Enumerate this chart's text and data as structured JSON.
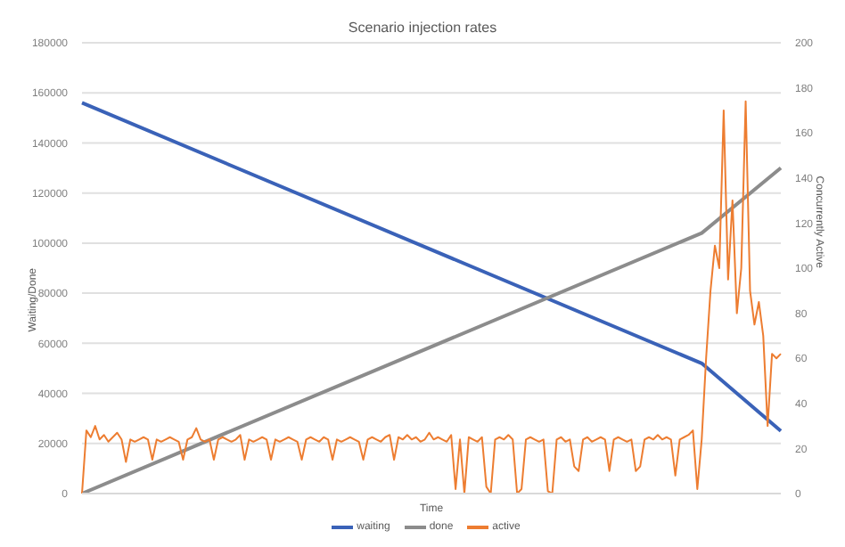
{
  "chart_data": {
    "type": "line",
    "title": "Scenario injection rates",
    "xlabel": "Time",
    "ylabel": "Waiting/Done",
    "y2label": "Concurrently Active",
    "categories": [
      null,
      null,
      null,
      null,
      null,
      null,
      null,
      null,
      null,
      null,
      null,
      null,
      null,
      null,
      null,
      null,
      null,
      null,
      null,
      null,
      null,
      null,
      null,
      null,
      null,
      null,
      null,
      null,
      null,
      null,
      null,
      null,
      null,
      null,
      null,
      null,
      null,
      null,
      null,
      null,
      null,
      null,
      null,
      null,
      null,
      null,
      null,
      null,
      null,
      null,
      null,
      null,
      null,
      null,
      null,
      null,
      null,
      null,
      null,
      null,
      null,
      null,
      null,
      null,
      null,
      null,
      null,
      null,
      null,
      null,
      null,
      null,
      null,
      null,
      null,
      null,
      null,
      null,
      null,
      null,
      null,
      null,
      null,
      null,
      null,
      null,
      null,
      null,
      null,
      null,
      null,
      null,
      null,
      null,
      null,
      null,
      null,
      null,
      null,
      null,
      null,
      null,
      null,
      null,
      null,
      null,
      null,
      null,
      null,
      null,
      null,
      null,
      null,
      null,
      null,
      null,
      null,
      null,
      null,
      null,
      null,
      null,
      null,
      null,
      null,
      null,
      null,
      null,
      null,
      null,
      null,
      null,
      null,
      null,
      null,
      null,
      null,
      null,
      null,
      null,
      null,
      null,
      null,
      null,
      null,
      null,
      null,
      null,
      null,
      null,
      null,
      null,
      null,
      null,
      null,
      null,
      null,
      null,
      null,
      null
    ],
    "series": [
      {
        "name": "waiting",
        "color": "#3a62b8",
        "values": [
          156000,
          null,
          null,
          null,
          null,
          null,
          null,
          null,
          null,
          null,
          null,
          null,
          null,
          null,
          null,
          null,
          null,
          null,
          null,
          null,
          null,
          null,
          null,
          null,
          null,
          null,
          null,
          null,
          null,
          null,
          null,
          null,
          null,
          null,
          null,
          null,
          null,
          null,
          null,
          null,
          null,
          null,
          null,
          null,
          null,
          null,
          null,
          null,
          null,
          null,
          null,
          null,
          null,
          null,
          null,
          null,
          null,
          null,
          null,
          null,
          null,
          null,
          null,
          null,
          null,
          null,
          null,
          null,
          null,
          null,
          null,
          null,
          null,
          null,
          null,
          null,
          null,
          null,
          null,
          null,
          null,
          null,
          null,
          null,
          null,
          null,
          null,
          null,
          null,
          null,
          null,
          null,
          null,
          null,
          null,
          null,
          null,
          null,
          null,
          null,
          null,
          null,
          null,
          null,
          null,
          null,
          null,
          null,
          null,
          null,
          null,
          null,
          null,
          null,
          null,
          null,
          null,
          null,
          null,
          null,
          null,
          null,
          null,
          null,
          null,
          null,
          null,
          null,
          null,
          null,
          null,
          null,
          null,
          null,
          null,
          null,
          null,
          null,
          null,
          null,
          null,
          52000,
          null,
          null,
          null,
          null,
          null,
          null,
          null,
          null,
          null,
          null,
          null,
          null,
          null,
          null,
          null,
          null,
          null,
          25000
        ]
      },
      {
        "name": "done",
        "color": "#8c8c8c",
        "values": [
          0,
          null,
          null,
          null,
          null,
          null,
          null,
          null,
          null,
          null,
          null,
          null,
          null,
          null,
          null,
          null,
          null,
          null,
          null,
          null,
          null,
          null,
          null,
          null,
          null,
          null,
          null,
          null,
          null,
          null,
          null,
          null,
          null,
          null,
          null,
          null,
          null,
          null,
          null,
          null,
          null,
          null,
          null,
          null,
          null,
          null,
          null,
          null,
          null,
          null,
          null,
          null,
          null,
          null,
          null,
          null,
          null,
          null,
          null,
          null,
          null,
          null,
          null,
          null,
          null,
          null,
          null,
          null,
          null,
          null,
          null,
          null,
          null,
          null,
          null,
          null,
          null,
          null,
          null,
          null,
          null,
          null,
          null,
          null,
          null,
          null,
          null,
          null,
          null,
          null,
          null,
          null,
          null,
          null,
          null,
          null,
          null,
          null,
          null,
          null,
          null,
          null,
          null,
          null,
          null,
          null,
          null,
          null,
          null,
          null,
          null,
          null,
          null,
          null,
          null,
          null,
          null,
          null,
          null,
          null,
          null,
          null,
          null,
          null,
          null,
          null,
          null,
          null,
          null,
          null,
          null,
          null,
          null,
          null,
          null,
          null,
          null,
          null,
          null,
          null,
          null,
          104000,
          null,
          null,
          null,
          null,
          null,
          null,
          null,
          null,
          null,
          null,
          null,
          null,
          null,
          null,
          null,
          null,
          null,
          130000
        ]
      },
      {
        "name": "active",
        "color": "#ed7d31",
        "axis": "y2",
        "values": [
          0,
          28,
          25,
          30,
          24,
          26,
          23,
          25,
          27,
          24,
          14,
          24,
          23,
          24,
          25,
          24,
          15,
          24,
          23,
          24,
          25,
          24,
          23,
          15,
          24,
          25,
          29,
          24,
          23,
          24,
          15,
          24,
          25,
          24,
          23,
          24,
          26,
          15,
          24,
          23,
          24,
          25,
          24,
          15,
          24,
          23,
          24,
          25,
          24,
          23,
          15,
          24,
          25,
          24,
          23,
          25,
          24,
          15,
          24,
          23,
          24,
          25,
          24,
          23,
          15,
          24,
          25,
          24,
          23,
          25,
          26,
          15,
          25,
          24,
          26,
          24,
          25,
          23,
          24,
          27,
          24,
          25,
          24,
          23,
          26,
          2,
          24,
          0,
          25,
          24,
          23,
          25,
          3,
          0,
          24,
          25,
          24,
          26,
          24,
          0,
          2,
          24,
          25,
          24,
          23,
          24,
          1,
          0,
          24,
          25,
          23,
          24,
          12,
          10,
          24,
          25,
          23,
          24,
          25,
          24,
          10,
          24,
          25,
          24,
          23,
          24,
          10,
          12,
          24,
          25,
          24,
          26,
          24,
          25,
          24,
          8,
          24,
          25,
          26,
          28,
          2,
          24,
          60,
          90,
          110,
          100,
          170,
          95,
          130,
          80,
          100,
          174,
          90,
          75,
          85,
          70,
          30,
          62,
          60,
          62
        ]
      }
    ],
    "ylim": [
      0,
      180000
    ],
    "yticks": [
      0,
      20000,
      40000,
      60000,
      80000,
      100000,
      120000,
      140000,
      160000,
      180000
    ],
    "y2lim": [
      0,
      200
    ],
    "y2ticks": [
      0,
      20,
      40,
      60,
      80,
      100,
      120,
      140,
      160,
      180,
      200
    ],
    "grid": "y",
    "legend": "bottom",
    "marker": "none",
    "line_style": "solid"
  }
}
